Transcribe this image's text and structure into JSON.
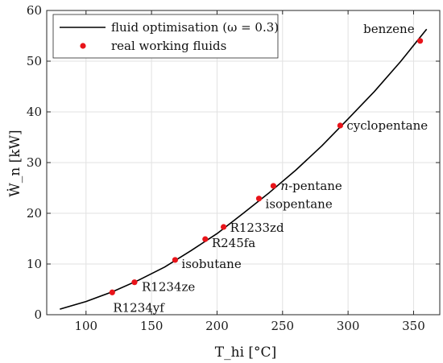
{
  "chart_data": {
    "type": "scatter",
    "title": "",
    "xlabel": "T_hi [°C]",
    "ylabel": "Ẇ_n [kW]",
    "xlim": [
      70,
      370
    ],
    "ylim": [
      0,
      60
    ],
    "xticks": [
      100,
      150,
      200,
      250,
      300,
      350
    ],
    "yticks": [
      0,
      10,
      20,
      30,
      40,
      50,
      60
    ],
    "grid": true,
    "legend_position": "top-left",
    "legend": [
      {
        "label": "fluid optimisation (ω = 0.3)",
        "kind": "line"
      },
      {
        "label": "real working fluids",
        "kind": "marker"
      }
    ],
    "series": [
      {
        "name": "fluid optimisation (ω = 0.3)",
        "kind": "line",
        "color": "#000000",
        "x": [
          80,
          100,
          120,
          140,
          160,
          180,
          200,
          220,
          240,
          260,
          280,
          300,
          320,
          340,
          360
        ],
        "y": [
          1.1,
          2.6,
          4.5,
          6.8,
          9.4,
          12.6,
          16.0,
          20.0,
          24.1,
          28.5,
          33.3,
          38.6,
          44.0,
          49.9,
          56.3
        ]
      },
      {
        "name": "real working fluids",
        "kind": "scatter",
        "color": "#e8141a",
        "points": [
          {
            "label": "R1234yf",
            "x": 120,
            "y": 4.4
          },
          {
            "label": "R1234ze",
            "x": 137,
            "y": 6.4
          },
          {
            "label": "isobutane",
            "x": 168,
            "y": 10.8
          },
          {
            "label": "R245fa",
            "x": 191,
            "y": 14.9
          },
          {
            "label": "R1233zd",
            "x": 205,
            "y": 17.3
          },
          {
            "label": "isopentane",
            "x": 232,
            "y": 22.9
          },
          {
            "label": "n-pentane",
            "x": 243,
            "y": 25.4
          },
          {
            "label": "cyclopentane",
            "x": 294,
            "y": 37.3
          },
          {
            "label": "benzene",
            "x": 355,
            "y": 54.0
          }
        ]
      }
    ]
  }
}
